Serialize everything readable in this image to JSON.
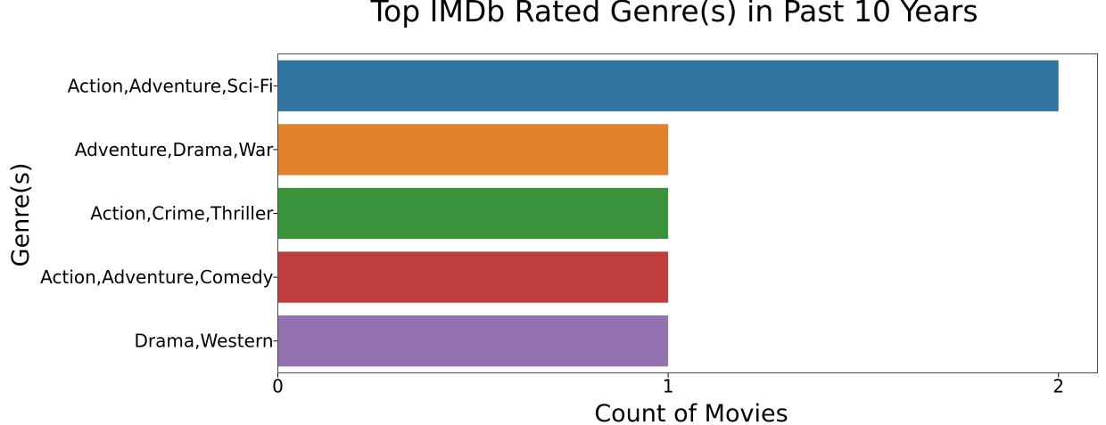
{
  "chart_data": {
    "type": "bar",
    "orientation": "horizontal",
    "title": "Top IMDb Rated Genre(s) in Past 10 Years",
    "xlabel": "Count of Movies",
    "ylabel": "Genre(s)",
    "categories": [
      "Action,Adventure,Sci-Fi",
      "Adventure,Drama,War",
      "Action,Crime,Thriller",
      "Action,Adventure,Comedy",
      "Drama,Western"
    ],
    "values": [
      2,
      1,
      1,
      1,
      1
    ],
    "colors": [
      "#3274a1",
      "#e1812c",
      "#3a923a",
      "#c03d3e",
      "#9372b2"
    ],
    "xlim": [
      0,
      2.1
    ],
    "xticks": [
      0,
      1,
      2
    ],
    "grid": false,
    "legend": "none"
  }
}
